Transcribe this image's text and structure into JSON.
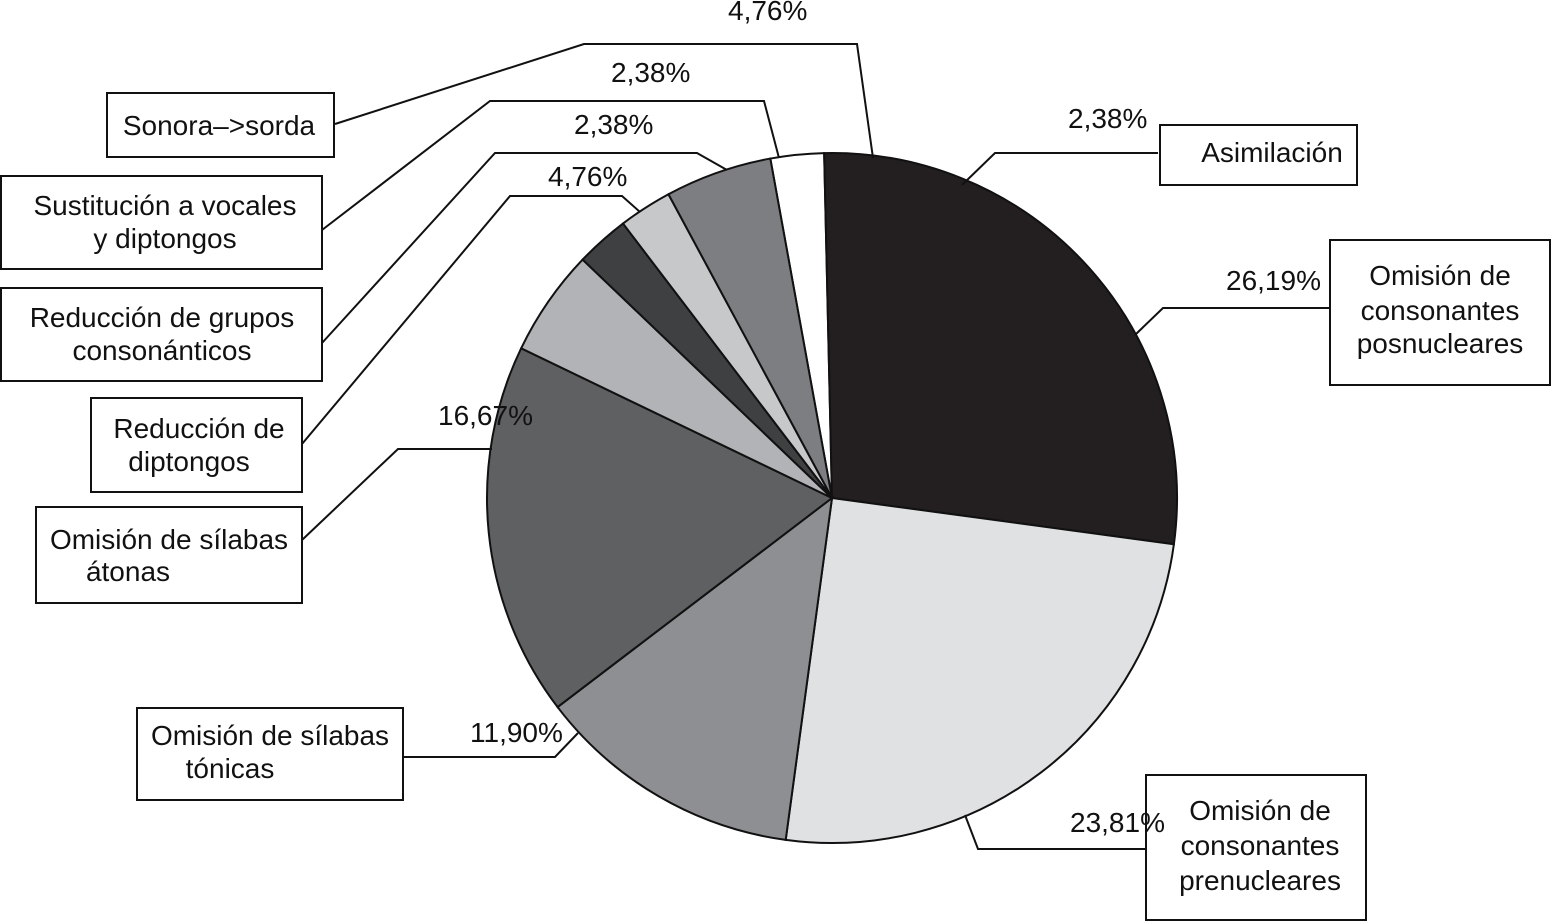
{
  "chart_data": {
    "type": "pie",
    "title": "",
    "slices": [
      {
        "label": "Asimilación",
        "value": 2.38,
        "label_text": "2,38%",
        "color": "#ffffff"
      },
      {
        "label": "Omisión de consonantes posnucleares",
        "value": 26.19,
        "label_text": "26,19%",
        "color": "#231f20"
      },
      {
        "label": "Omisión de consonantes prenucleares",
        "value": 23.81,
        "label_text": "23,81%",
        "color": "#e0e1e3"
      },
      {
        "label": "Omisión de sílabas tónicas",
        "value": 11.9,
        "label_text": "11,90%",
        "color": "#8e8f92"
      },
      {
        "label": "Omisión de sílabas átonas",
        "value": 16.67,
        "label_text": "16,67%",
        "color": "#5f6062"
      },
      {
        "label": "Reducción de diptongos",
        "value": 4.76,
        "label_text": "4,76%",
        "color": "#b2b3b6"
      },
      {
        "label": "Reducción de grupos consonánticos",
        "value": 2.38,
        "label_text": "2,38%",
        "color": "#3f4042"
      },
      {
        "label": "Sustitución a vocales y diptongos",
        "value": 2.38,
        "label_text": "2,38%",
        "color": "#c7c8ca"
      },
      {
        "label": "Sonora–>sorda",
        "value": 4.76,
        "label_text": "4,76%",
        "color": "#7d7e81"
      }
    ]
  }
}
